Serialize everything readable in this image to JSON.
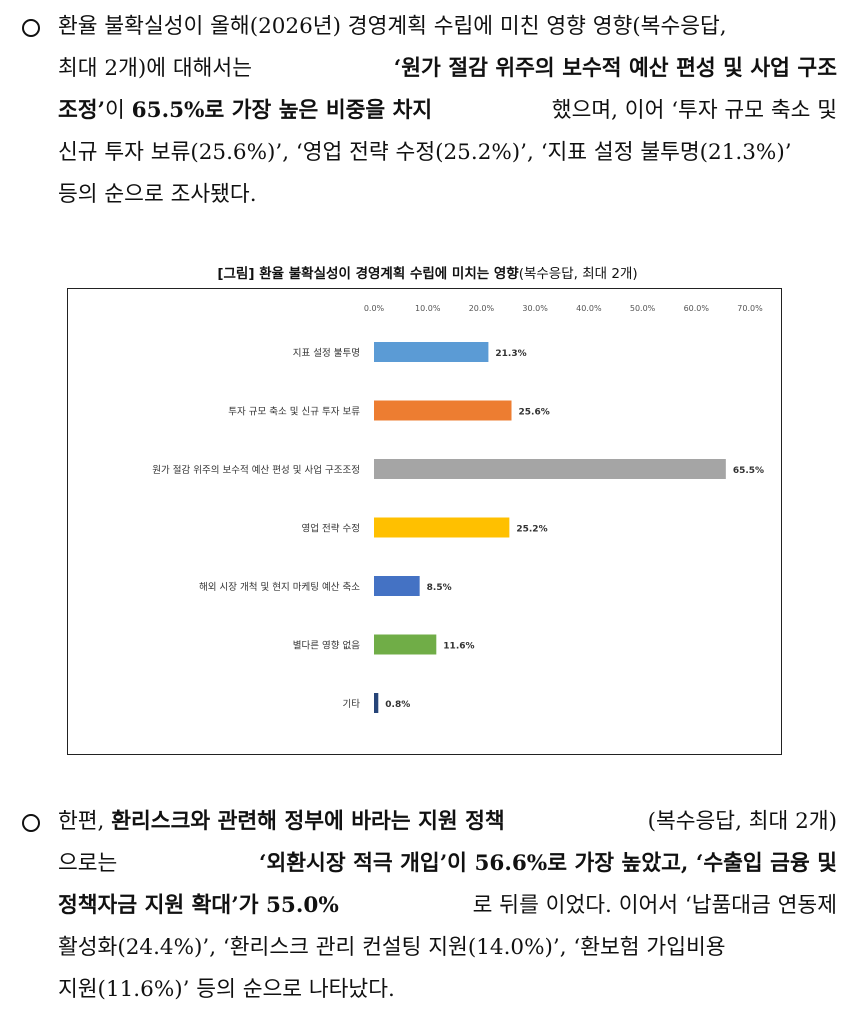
{
  "paragraph1": {
    "lines": [
      [
        "환율 불확실성이 올해(2026년) 경영계획 수립에 미친 영향 영향(복수응답,"
      ],
      [
        "최대 2개)에 대해서는 ",
        "‘원가 절감 위주의 보수적 예산 편성 및 사업 구조"
      ],
      [
        "조정’",
        "이 ",
        "65.5%로 가장 높은 비중을 차지",
        "했으며, 이어 ‘투자 규모 축소 및"
      ],
      [
        "신규 투자 보류(25.6%)’, ‘영업 전략 수정(25.2%)’, ‘지표 설정 불투명(21.3%)’"
      ],
      [
        "등의 순으로 조사됐다."
      ]
    ]
  },
  "chart": {
    "title_bold": "[그림] 환율 불확실성이 경영계획 수립에 미치는 영향",
    "title_normal": "(복수응답, 최대 2개)"
  },
  "chart_data": {
    "type": "bar",
    "orientation": "horizontal",
    "categories": [
      "지표 설정 불투명",
      "투자 규모 축소 및 신규 투자 보류",
      "원가 절감 위주의 보수적 예산 편성 및 사업 구조조정",
      "영업 전략 수정",
      "해외 시장 개척 및 현지 마케팅 예산 축소",
      "별다른 영향 없음",
      "기타"
    ],
    "values": [
      21.3,
      25.6,
      65.5,
      25.2,
      8.5,
      11.6,
      0.8
    ],
    "value_labels": [
      "21.3%",
      "25.6%",
      "65.5%",
      "25.2%",
      "8.5%",
      "11.6%",
      "0.8%"
    ],
    "colors": [
      "#5b9bd5",
      "#ed7d31",
      "#a5a5a5",
      "#ffc000",
      "#4472c4",
      "#70ad47",
      "#264478"
    ],
    "xlim": [
      0,
      70
    ],
    "ticks": [
      "0.0%",
      "10.0%",
      "20.0%",
      "30.0%",
      "40.0%",
      "50.0%",
      "60.0%",
      "70.0%"
    ],
    "axis_position": "top",
    "grid": false,
    "legend": "none"
  },
  "paragraph2": {
    "lines": [
      [
        "한편, ",
        "환리스크와 관련해 정부에 바라는 지원 정책",
        "(복수응답, 최대 2개)"
      ],
      [
        "으로는 ",
        "‘외환시장 적극 개입’이 56.6%로 가장 높았고, ‘수출입 금융 및"
      ],
      [
        "정책자금 지원 확대’가 55.0%",
        "로 뒤를 이었다. 이어서 ‘납품대금 연동제"
      ],
      [
        "활성화(24.4%)’, ‘환리스크 관리 컨설팅 지원(14.0%)’, ‘환보험 가입비용"
      ],
      [
        "지원(11.6%)’ 등의 순으로 나타났다."
      ]
    ]
  }
}
